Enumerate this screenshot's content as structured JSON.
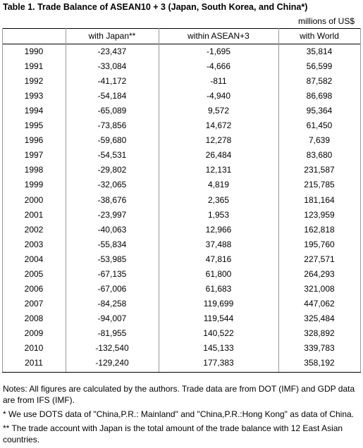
{
  "title": "Table 1. Trade Balance of ASEAN10 + 3 (Japan, South Korea, and China*)",
  "unit": "millions of US$",
  "table": {
    "headers": [
      "with Japan**",
      "within ASEAN+3",
      "with World"
    ],
    "rows": [
      [
        "1990",
        "-23,437",
        "-1,695",
        "35,814"
      ],
      [
        "1991",
        "-33,084",
        "-4,666",
        "56,599"
      ],
      [
        "1992",
        "-41,172",
        "-811",
        "87,582"
      ],
      [
        "1993",
        "-54,184",
        "-4,940",
        "86,698"
      ],
      [
        "1994",
        "-65,089",
        "9,572",
        "95,364"
      ],
      [
        "1995",
        "-73,856",
        "14,672",
        "61,450"
      ],
      [
        "1996",
        "-59,680",
        "12,278",
        "7,639"
      ],
      [
        "1997",
        "-54,531",
        "26,484",
        "83,680"
      ],
      [
        "1998",
        "-29,802",
        "12,131",
        "231,587"
      ],
      [
        "1999",
        "-32,065",
        "4,819",
        "215,785"
      ],
      [
        "2000",
        "-38,676",
        "2,365",
        "181,164"
      ],
      [
        "2001",
        "-23,997",
        "1,953",
        "123,959"
      ],
      [
        "2002",
        "-40,063",
        "12,966",
        "162,818"
      ],
      [
        "2003",
        "-55,834",
        "37,488",
        "195,760"
      ],
      [
        "2004",
        "-53,985",
        "47,816",
        "227,571"
      ],
      [
        "2005",
        "-67,135",
        "61,800",
        "264,293"
      ],
      [
        "2006",
        "-67,006",
        "61,683",
        "321,008"
      ],
      [
        "2007",
        "-84,258",
        "119,699",
        "447,062"
      ],
      [
        "2008",
        "-94,007",
        "119,544",
        "325,484"
      ],
      [
        "2009",
        "-81,955",
        "140,522",
        "328,892"
      ],
      [
        "2010",
        "-132,540",
        "145,133",
        "339,783"
      ],
      [
        "2011",
        "-129,240",
        "177,383",
        "358,192"
      ]
    ]
  },
  "notes": [
    "Notes:  All figures are calculated by the authors. Trade data are from DOT (IMF) and GDP data are from IFS (IMF).",
    "* We use DOTS data of \"China,P.R.: Mainland\" and \"China,P.R.:Hong Kong\" as data of China.",
    "** The trade account with Japan is the total amount of the trade balance with 12 East Asian countries."
  ]
}
